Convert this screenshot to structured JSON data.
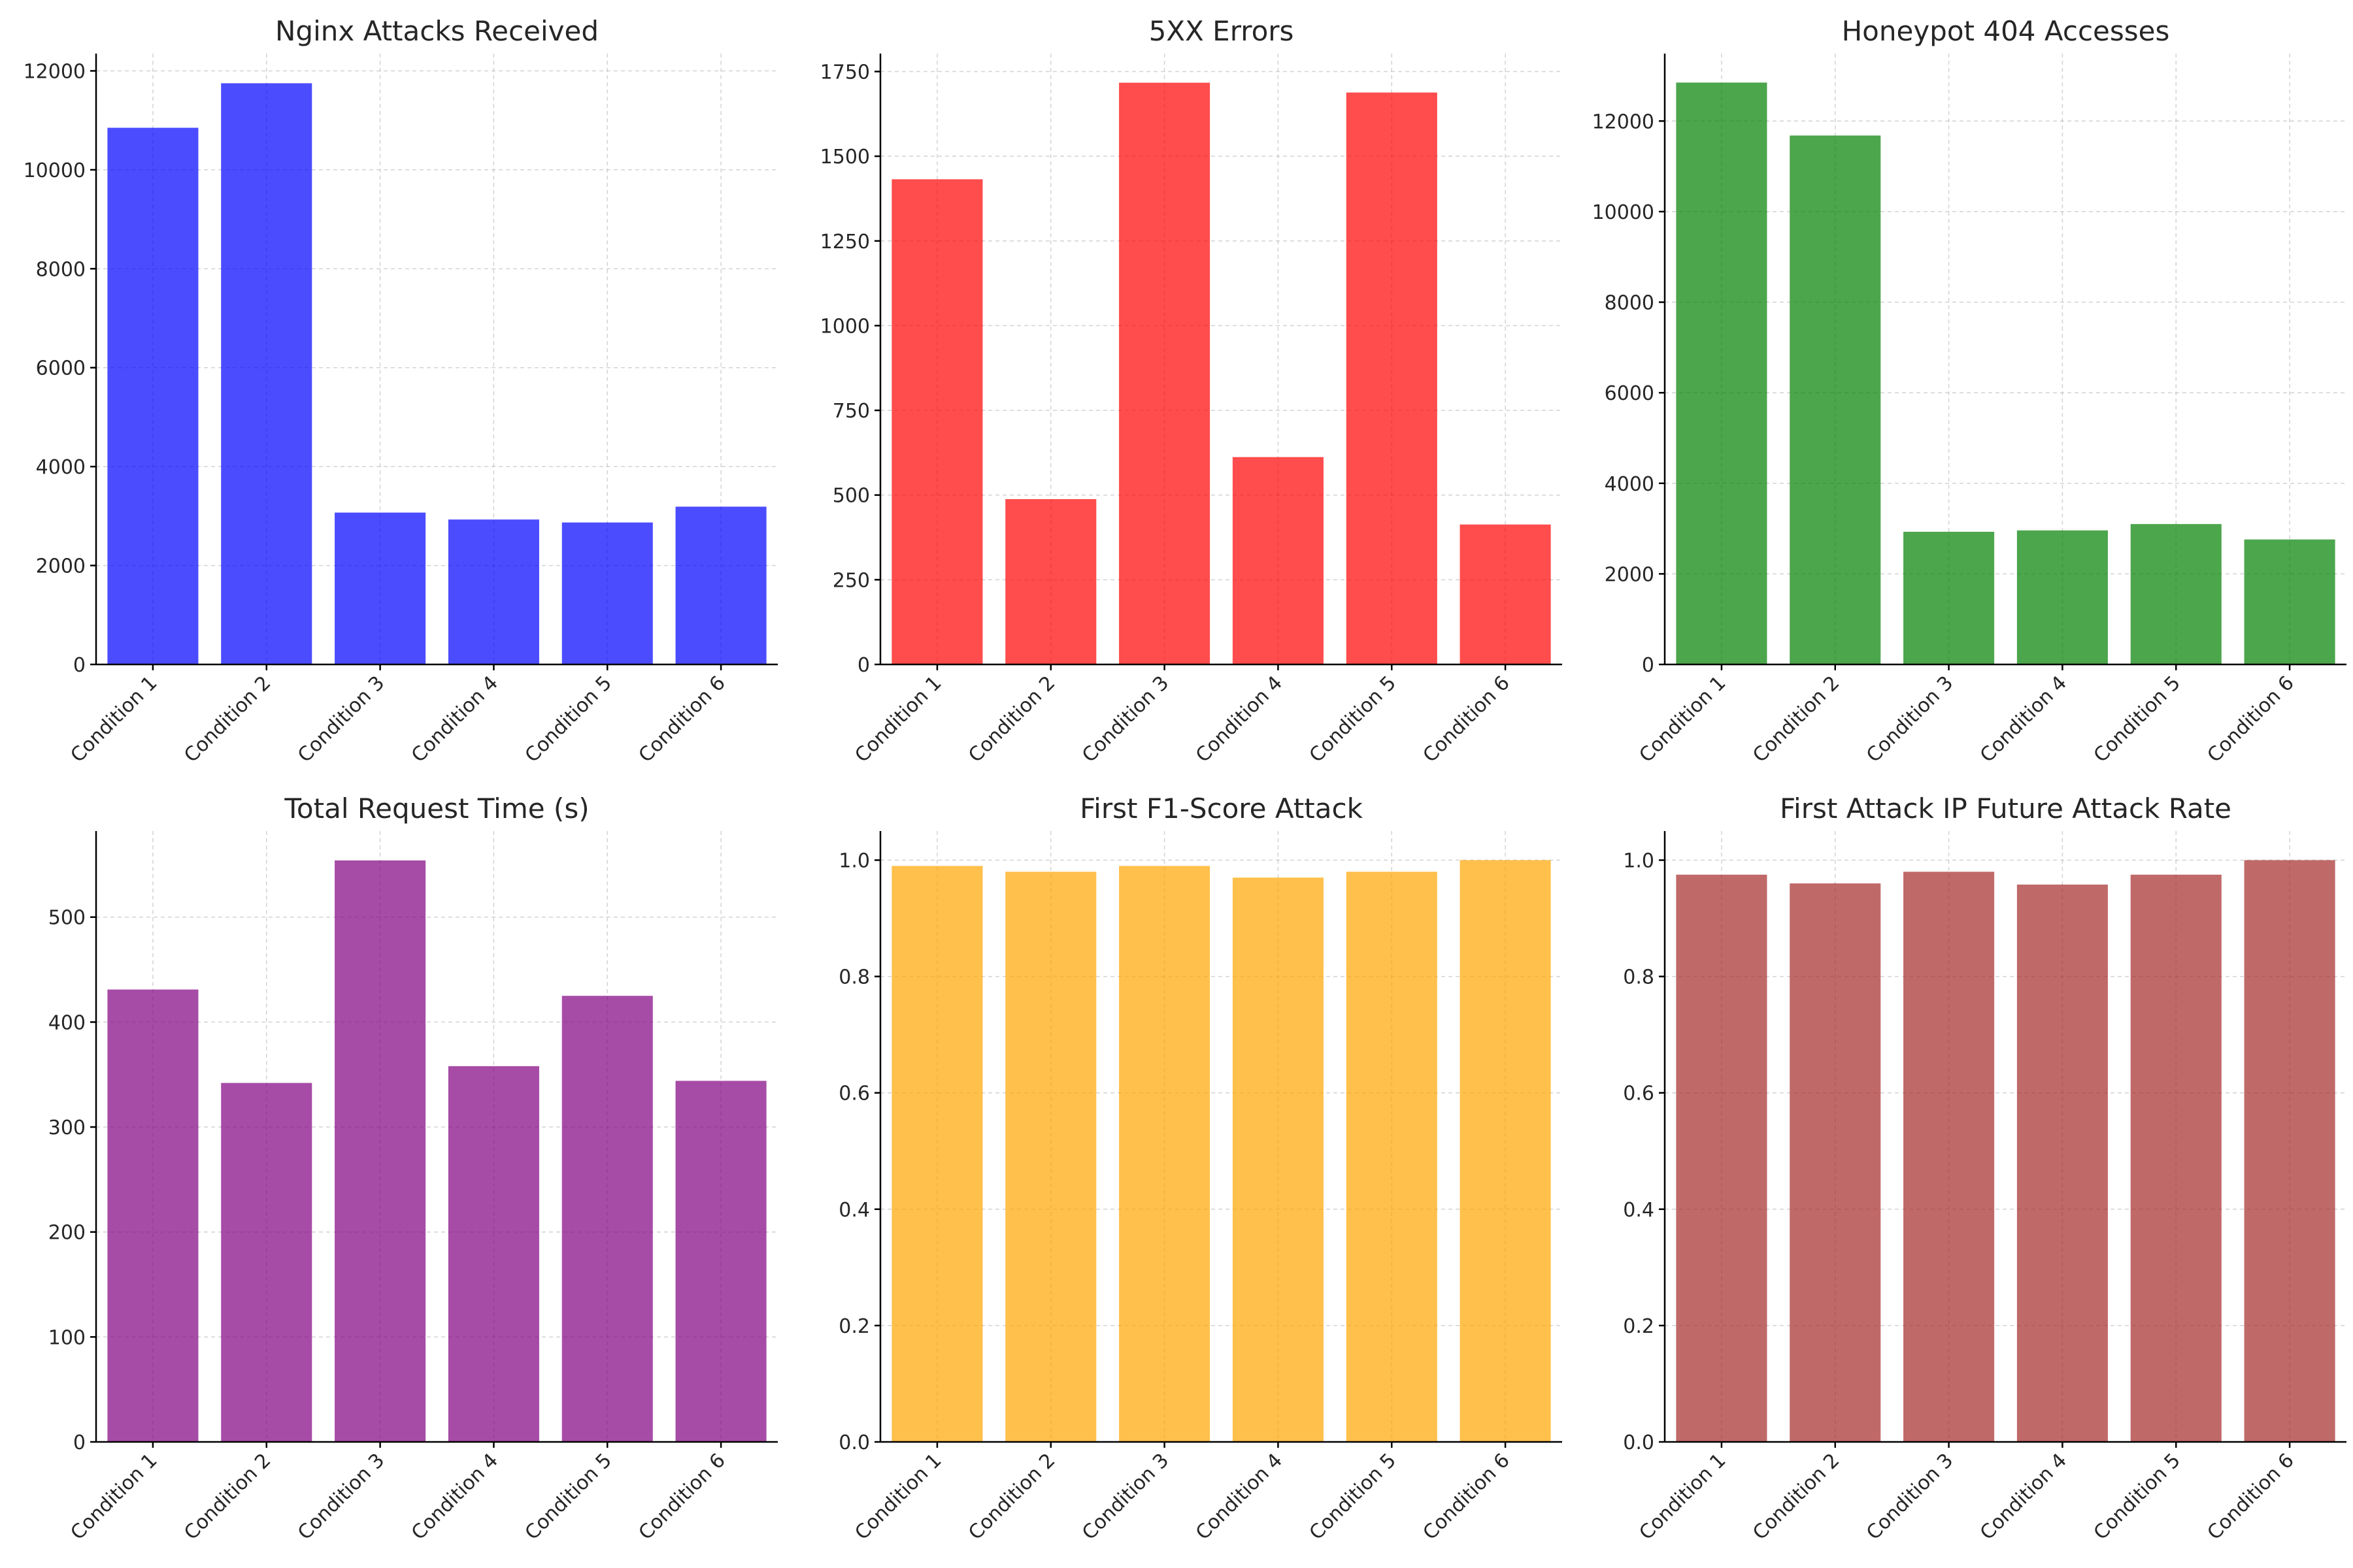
{
  "figure": "Six bar-chart panels comparing conditions",
  "chart_data": [
    {
      "type": "bar",
      "title": "Nginx Attacks Received",
      "categories": [
        "Condition 1",
        "Condition 2",
        "Condition 3",
        "Condition 4",
        "Condition 5",
        "Condition 6"
      ],
      "values": [
        10850,
        11750,
        3070,
        2930,
        2870,
        3190
      ],
      "color": "#0000ff",
      "ylim": [
        0,
        12350
      ],
      "yticks": [
        0,
        2000,
        4000,
        6000,
        8000,
        10000,
        12000
      ],
      "tick_labels": [
        "0",
        "2000",
        "4000",
        "6000",
        "8000",
        "10000",
        "12000"
      ],
      "xlabel": "",
      "ylabel": "",
      "grid": true
    },
    {
      "type": "bar",
      "title": "5XX Errors",
      "categories": [
        "Condition 1",
        "Condition 2",
        "Condition 3",
        "Condition 4",
        "Condition 5",
        "Condition 6"
      ],
      "values": [
        1432,
        488,
        1717,
        612,
        1688,
        413
      ],
      "color": "#ff0000",
      "ylim": [
        0,
        1803
      ],
      "yticks": [
        0,
        250,
        500,
        750,
        1000,
        1250,
        1500,
        1750
      ],
      "tick_labels": [
        "0",
        "250",
        "500",
        "750",
        "1000",
        "1250",
        "1500",
        "1750"
      ],
      "xlabel": "",
      "ylabel": "",
      "grid": true
    },
    {
      "type": "bar",
      "title": "Honeypot 404 Accesses",
      "categories": [
        "Condition 1",
        "Condition 2",
        "Condition 3",
        "Condition 4",
        "Condition 5",
        "Condition 6"
      ],
      "values": [
        12850,
        11680,
        2930,
        2960,
        3100,
        2760
      ],
      "color": "#008000",
      "ylim": [
        0,
        13490
      ],
      "yticks": [
        0,
        2000,
        4000,
        6000,
        8000,
        10000,
        12000
      ],
      "tick_labels": [
        "0",
        "2000",
        "4000",
        "6000",
        "8000",
        "10000",
        "12000"
      ],
      "xlabel": "",
      "ylabel": "",
      "grid": true
    },
    {
      "type": "bar",
      "title": "Total Request Time (s)",
      "categories": [
        "Condition 1",
        "Condition 2",
        "Condition 3",
        "Condition 4",
        "Condition 5",
        "Condition 6"
      ],
      "values": [
        431,
        342,
        554,
        358,
        425,
        344
      ],
      "color": "#800080",
      "ylim": [
        0,
        582
      ],
      "yticks": [
        0,
        100,
        200,
        300,
        400,
        500
      ],
      "tick_labels": [
        "0",
        "100",
        "200",
        "300",
        "400",
        "500"
      ],
      "xlabel": "",
      "ylabel": "",
      "grid": true
    },
    {
      "type": "bar",
      "title": "First F1-Score Attack",
      "categories": [
        "Condition 1",
        "Condition 2",
        "Condition 3",
        "Condition 4",
        "Condition 5",
        "Condition 6"
      ],
      "values": [
        0.99,
        0.98,
        0.99,
        0.97,
        0.98,
        1.0
      ],
      "color": "#ffa500",
      "ylim": [
        0,
        1.05
      ],
      "yticks": [
        0,
        0.2,
        0.4,
        0.6,
        0.8,
        1.0
      ],
      "tick_labels": [
        "0.0",
        "0.2",
        "0.4",
        "0.6",
        "0.8",
        "1.0"
      ],
      "xlabel": "",
      "ylabel": "",
      "grid": true
    },
    {
      "type": "bar",
      "title": "First Attack IP Future Attack Rate",
      "categories": [
        "Condition 1",
        "Condition 2",
        "Condition 3",
        "Condition 4",
        "Condition 5",
        "Condition 6"
      ],
      "values": [
        0.975,
        0.96,
        0.98,
        0.958,
        0.975,
        1.0
      ],
      "color": "#a52a2a",
      "ylim": [
        0,
        1.05
      ],
      "yticks": [
        0,
        0.2,
        0.4,
        0.6,
        0.8,
        1.0
      ],
      "tick_labels": [
        "0.0",
        "0.2",
        "0.4",
        "0.6",
        "0.8",
        "1.0"
      ],
      "xlabel": "",
      "ylabel": "",
      "grid": true
    }
  ]
}
